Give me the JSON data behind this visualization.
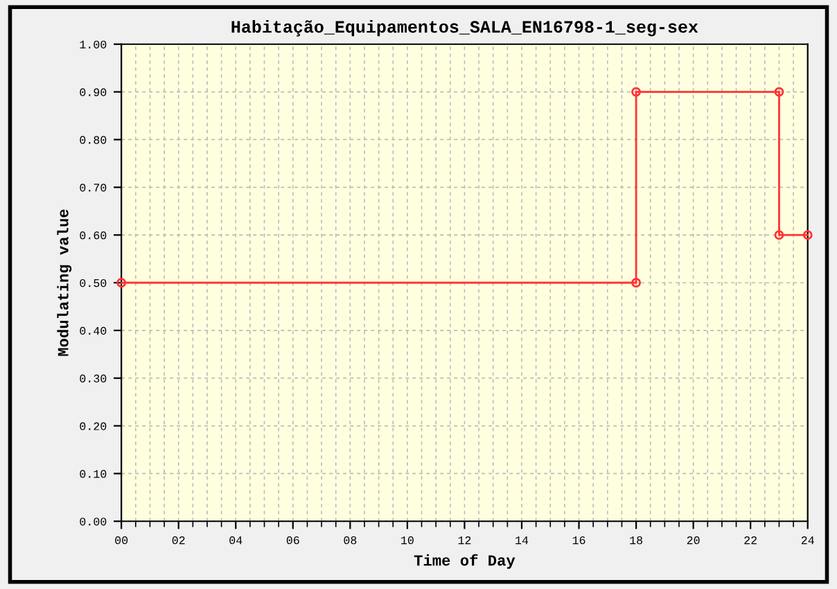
{
  "chart_data": {
    "type": "line",
    "title": "Habitação_Equipamentos_SALA_EN16798-1_seg-sex",
    "xlabel": "Time of Day",
    "ylabel": "Modulating value",
    "series": [
      {
        "color": "#ff3333",
        "x": [
          0,
          18,
          18,
          23,
          23,
          24
        ],
        "values": [
          0.5,
          0.5,
          0.9,
          0.9,
          0.6,
          0.6
        ]
      }
    ],
    "xlim": [
      0,
      24
    ],
    "ylim": [
      0,
      1
    ],
    "xticks": [
      {
        "value": 0,
        "label": "00"
      },
      {
        "value": 2,
        "label": "02"
      },
      {
        "value": 4,
        "label": "04"
      },
      {
        "value": 6,
        "label": "06"
      },
      {
        "value": 8,
        "label": "08"
      },
      {
        "value": 10,
        "label": "10"
      },
      {
        "value": 12,
        "label": "12"
      },
      {
        "value": 14,
        "label": "14"
      },
      {
        "value": 16,
        "label": "16"
      },
      {
        "value": 18,
        "label": "18"
      },
      {
        "value": 20,
        "label": "20"
      },
      {
        "value": 22,
        "label": "22"
      },
      {
        "value": 24,
        "label": "24"
      }
    ],
    "yticks": [
      {
        "value": 0,
        "label": "0.00"
      },
      {
        "value": 0.1,
        "label": "0.10"
      },
      {
        "value": 0.2,
        "label": "0.20"
      },
      {
        "value": 0.3,
        "label": "0.30"
      },
      {
        "value": 0.4,
        "label": "0.40"
      },
      {
        "value": 0.5,
        "label": "0.50"
      },
      {
        "value": 0.6,
        "label": "0.60"
      },
      {
        "value": 0.7,
        "label": "0.70"
      },
      {
        "value": 0.8,
        "label": "0.80"
      },
      {
        "value": 0.9,
        "label": "0.90"
      },
      {
        "value": 1,
        "label": "1.00"
      }
    ],
    "grid": true,
    "marker": "circle",
    "line_style": "solid"
  }
}
